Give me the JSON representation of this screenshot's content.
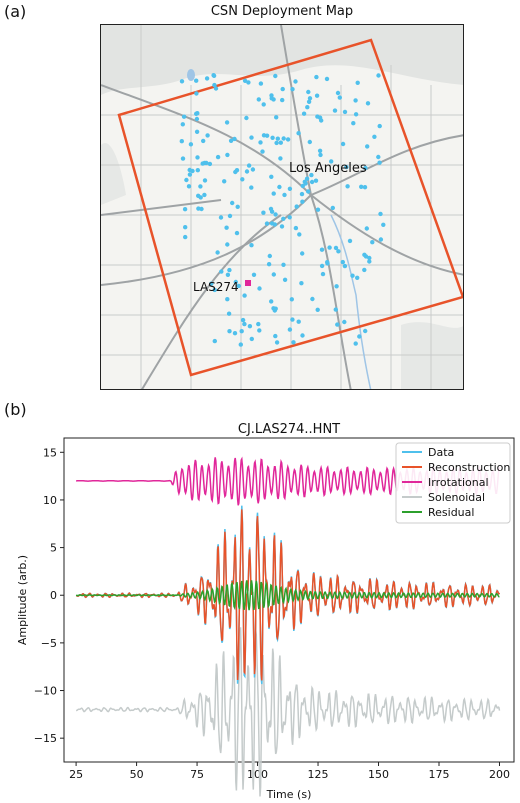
{
  "figure": {
    "panel_a_label": "(a)",
    "panel_b_label": "(b)"
  },
  "map": {
    "title": "CSN Deployment Map",
    "city_label": "Los Angeles",
    "station_label": "LAS274",
    "station_color": "#e0279a",
    "box_color": "#e8532a",
    "dot_color": "#4fc0ec"
  },
  "chart_data": {
    "type": "line",
    "title": "CJ.LAS274..HNT",
    "xlabel": "Time (s)",
    "ylabel": "Amplitude (arb.)",
    "xlim": [
      20,
      206
    ],
    "ylim": [
      -17.5,
      16.5
    ],
    "xticks": [
      25,
      50,
      75,
      100,
      125,
      150,
      175,
      200
    ],
    "yticks": [
      -15,
      -10,
      -5,
      0,
      5,
      10,
      15
    ],
    "legend_position": "top-right",
    "series": [
      {
        "name": "Data",
        "color": "#4fc0ec",
        "offset": 0,
        "description": "waveform centered at 0, peaks about ±6 near 97 s"
      },
      {
        "name": "Reconstruction",
        "color": "#e8532a",
        "offset": 0,
        "description": "waveform centered at 0, peaks about ±5.5 near 97 s"
      },
      {
        "name": "Irrotational",
        "color": "#e0279a",
        "offset": 12,
        "description": "waveform offset to 12, amplitude about ±2"
      },
      {
        "name": "Solenoidal",
        "color": "#c5cbcb",
        "offset": -12,
        "description": "waveform offset to -12, amplitude about ±5"
      },
      {
        "name": "Residual",
        "color": "#2ca02c",
        "offset": 0,
        "description": "waveform centered at 0, amplitude about ±1"
      }
    ]
  }
}
